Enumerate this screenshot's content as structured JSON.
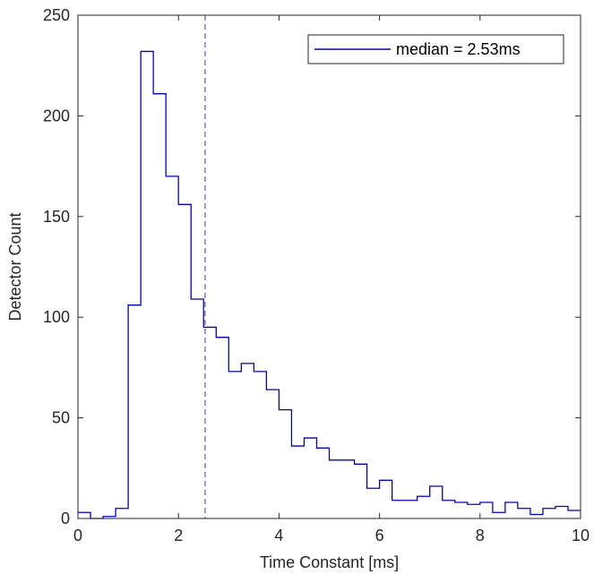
{
  "chart_data": {
    "type": "histogram",
    "xlabel": "Time Constant [ms]",
    "ylabel": "Detector Count",
    "xlim": [
      0,
      10
    ],
    "ylim": [
      0,
      250
    ],
    "xticks": [
      0,
      2,
      4,
      6,
      8,
      10
    ],
    "yticks": [
      0,
      50,
      100,
      150,
      200,
      250
    ],
    "grid": false,
    "legend_position": "top-right",
    "bin_width": 0.25,
    "bin_edges_start": 0,
    "series": [
      {
        "name": "median = 2.53ms",
        "color": "#0000cc",
        "style": "stairs",
        "values": [
          3,
          0,
          1,
          5,
          106,
          232,
          211,
          170,
          156,
          109,
          95,
          90,
          73,
          77,
          73,
          64,
          54,
          36,
          40,
          35,
          29,
          29,
          27,
          15,
          19,
          9,
          9,
          11,
          16,
          9,
          8,
          7,
          8,
          3,
          8,
          5,
          2,
          5,
          6,
          4
        ]
      }
    ],
    "reference_lines": [
      {
        "axis": "x",
        "value": 2.53,
        "style": "dashed",
        "color": "#5a5aa8"
      }
    ]
  }
}
